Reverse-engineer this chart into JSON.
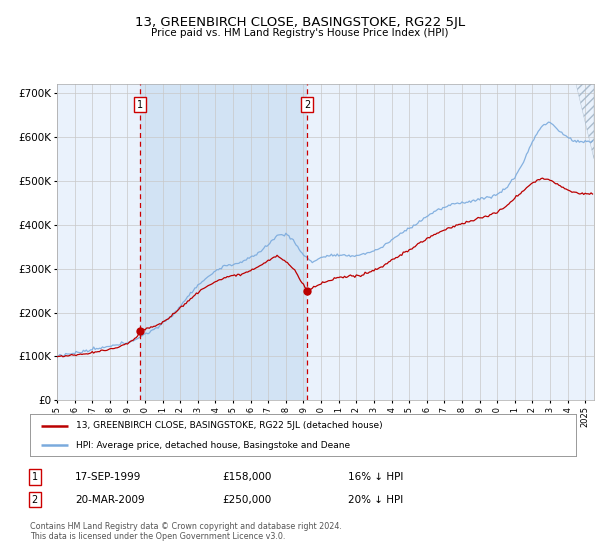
{
  "title": "13, GREENBIRCH CLOSE, BASINGSTOKE, RG22 5JL",
  "subtitle": "Price paid vs. HM Land Registry's House Price Index (HPI)",
  "background_color": "#ffffff",
  "plot_bg_color": "#ddeeff",
  "plot_bg_color2": "#eaf2fc",
  "grid_color": "#cccccc",
  "ylim": [
    0,
    720000
  ],
  "yticks": [
    0,
    100000,
    200000,
    300000,
    400000,
    500000,
    600000,
    700000
  ],
  "ytick_labels": [
    "£0",
    "£100K",
    "£200K",
    "£300K",
    "£400K",
    "£500K",
    "£600K",
    "£700K"
  ],
  "sale1": {
    "date_num": 1999.72,
    "price": 158000,
    "label": "1",
    "date_str": "17-SEP-1999",
    "price_str": "£158,000",
    "hpi_str": "16% ↓ HPI"
  },
  "sale2": {
    "date_num": 2009.22,
    "price": 250000,
    "label": "2",
    "date_str": "20-MAR-2009",
    "price_str": "£250,000",
    "hpi_str": "20% ↓ HPI"
  },
  "legend_house": "13, GREENBIRCH CLOSE, BASINGSTOKE, RG22 5JL (detached house)",
  "legend_hpi": "HPI: Average price, detached house, Basingstoke and Deane",
  "footer": "Contains HM Land Registry data © Crown copyright and database right 2024.\nThis data is licensed under the Open Government Licence v3.0.",
  "house_line_color": "#bb0000",
  "hpi_line_color": "#7aaadd",
  "vline_color": "#cc0000",
  "xmin": 1995.0,
  "xmax": 2025.5,
  "hpi_keypoints": [
    [
      1995.0,
      102000
    ],
    [
      1995.5,
      104000
    ],
    [
      1996.0,
      107000
    ],
    [
      1996.5,
      110000
    ],
    [
      1997.0,
      114000
    ],
    [
      1997.5,
      118000
    ],
    [
      1998.0,
      122000
    ],
    [
      1998.5,
      127000
    ],
    [
      1999.0,
      133000
    ],
    [
      1999.5,
      140000
    ],
    [
      2000.0,
      150000
    ],
    [
      2000.5,
      162000
    ],
    [
      2001.0,
      175000
    ],
    [
      2001.5,
      192000
    ],
    [
      2002.0,
      215000
    ],
    [
      2002.5,
      240000
    ],
    [
      2003.0,
      262000
    ],
    [
      2003.5,
      278000
    ],
    [
      2004.0,
      295000
    ],
    [
      2004.5,
      305000
    ],
    [
      2005.0,
      310000
    ],
    [
      2005.5,
      315000
    ],
    [
      2006.0,
      325000
    ],
    [
      2006.5,
      338000
    ],
    [
      2007.0,
      355000
    ],
    [
      2007.5,
      375000
    ],
    [
      2008.0,
      380000
    ],
    [
      2008.5,
      360000
    ],
    [
      2009.0,
      330000
    ],
    [
      2009.5,
      315000
    ],
    [
      2010.0,
      325000
    ],
    [
      2010.5,
      330000
    ],
    [
      2011.0,
      330000
    ],
    [
      2011.5,
      328000
    ],
    [
      2012.0,
      330000
    ],
    [
      2012.5,
      335000
    ],
    [
      2013.0,
      340000
    ],
    [
      2013.5,
      350000
    ],
    [
      2014.0,
      365000
    ],
    [
      2014.5,
      380000
    ],
    [
      2015.0,
      392000
    ],
    [
      2015.5,
      405000
    ],
    [
      2016.0,
      420000
    ],
    [
      2016.5,
      432000
    ],
    [
      2017.0,
      440000
    ],
    [
      2017.5,
      448000
    ],
    [
      2018.0,
      452000
    ],
    [
      2018.5,
      455000
    ],
    [
      2019.0,
      460000
    ],
    [
      2019.5,
      465000
    ],
    [
      2020.0,
      470000
    ],
    [
      2020.5,
      485000
    ],
    [
      2021.0,
      510000
    ],
    [
      2021.5,
      545000
    ],
    [
      2022.0,
      590000
    ],
    [
      2022.5,
      625000
    ],
    [
      2023.0,
      635000
    ],
    [
      2023.5,
      615000
    ],
    [
      2024.0,
      600000
    ],
    [
      2024.5,
      590000
    ],
    [
      2025.0,
      590000
    ]
  ],
  "house_keypoints": [
    [
      1995.0,
      100000
    ],
    [
      1995.5,
      101000
    ],
    [
      1996.0,
      103000
    ],
    [
      1996.5,
      105000
    ],
    [
      1997.0,
      108000
    ],
    [
      1997.5,
      112000
    ],
    [
      1998.0,
      116000
    ],
    [
      1998.5,
      122000
    ],
    [
      1999.0,
      130000
    ],
    [
      1999.5,
      142000
    ],
    [
      1999.72,
      158000
    ],
    [
      2000.0,
      162000
    ],
    [
      2000.5,
      168000
    ],
    [
      2001.0,
      178000
    ],
    [
      2001.5,
      192000
    ],
    [
      2002.0,
      210000
    ],
    [
      2002.5,
      228000
    ],
    [
      2003.0,
      245000
    ],
    [
      2003.5,
      258000
    ],
    [
      2004.0,
      270000
    ],
    [
      2004.5,
      278000
    ],
    [
      2005.0,
      283000
    ],
    [
      2005.5,
      288000
    ],
    [
      2006.0,
      295000
    ],
    [
      2006.5,
      305000
    ],
    [
      2007.0,
      318000
    ],
    [
      2007.5,
      328000
    ],
    [
      2008.0,
      315000
    ],
    [
      2008.5,
      295000
    ],
    [
      2009.0,
      262000
    ],
    [
      2009.22,
      250000
    ],
    [
      2009.5,
      255000
    ],
    [
      2010.0,
      265000
    ],
    [
      2010.5,
      272000
    ],
    [
      2011.0,
      278000
    ],
    [
      2011.5,
      280000
    ],
    [
      2012.0,
      282000
    ],
    [
      2012.5,
      288000
    ],
    [
      2013.0,
      295000
    ],
    [
      2013.5,
      305000
    ],
    [
      2014.0,
      318000
    ],
    [
      2014.5,
      330000
    ],
    [
      2015.0,
      342000
    ],
    [
      2015.5,
      355000
    ],
    [
      2016.0,
      368000
    ],
    [
      2016.5,
      378000
    ],
    [
      2017.0,
      388000
    ],
    [
      2017.5,
      395000
    ],
    [
      2018.0,
      402000
    ],
    [
      2018.5,
      408000
    ],
    [
      2019.0,
      415000
    ],
    [
      2019.5,
      420000
    ],
    [
      2020.0,
      428000
    ],
    [
      2020.5,
      440000
    ],
    [
      2021.0,
      460000
    ],
    [
      2021.5,
      478000
    ],
    [
      2022.0,
      495000
    ],
    [
      2022.5,
      505000
    ],
    [
      2023.0,
      502000
    ],
    [
      2023.5,
      490000
    ],
    [
      2024.0,
      480000
    ],
    [
      2024.5,
      472000
    ],
    [
      2025.0,
      470000
    ]
  ]
}
